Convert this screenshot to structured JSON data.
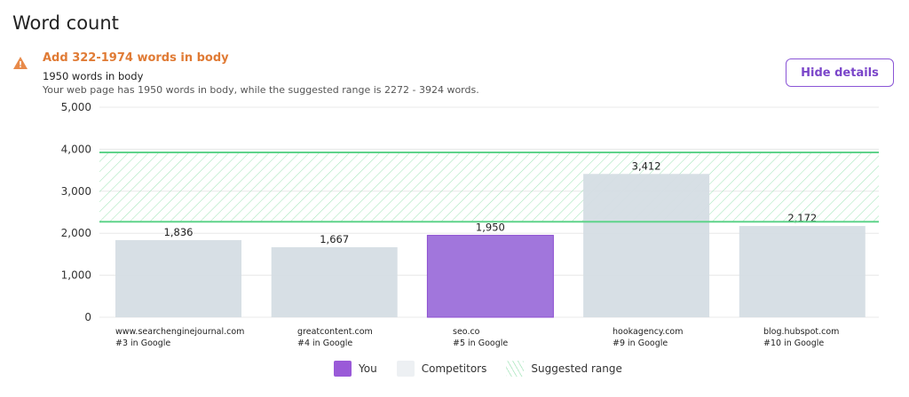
{
  "title": "Word count",
  "alert": {
    "icon": "warning-icon",
    "heading": "Add 322-1974 words in body",
    "subtitle": "1950 words in body",
    "description": "Your web page has 1950 words in body, while the suggested range is 2272 - 3924 words."
  },
  "hide_details_label": "Hide details",
  "colors": {
    "you": "#a176dc",
    "competitor": "#d5dde4",
    "range": "#5fd38a",
    "accent": "#e07b35"
  },
  "chart_data": {
    "type": "bar",
    "categories": [
      "www.searchenginejournal.com",
      "greatcontent.com",
      "seo.co",
      "hookagency.com",
      "blog.hubspot.com"
    ],
    "ranks": [
      "#3 in Google",
      "#4 in Google",
      "#5 in Google",
      "#9 in Google",
      "#10 in Google"
    ],
    "values": [
      1836,
      1667,
      1950,
      3412,
      2172
    ],
    "value_labels": [
      "1,836",
      "1,667",
      "1,950",
      "3,412",
      "2,172"
    ],
    "is_you": [
      false,
      false,
      true,
      false,
      false
    ],
    "ylim": [
      0,
      5000
    ],
    "yticks": [
      0,
      1000,
      2000,
      3000,
      4000,
      5000
    ],
    "ytick_labels": [
      "0",
      "1,000",
      "2,000",
      "3,000",
      "4,000",
      "5,000"
    ],
    "suggested_range": [
      2272,
      3924
    ],
    "legend": [
      "You",
      "Competitors",
      "Suggested range"
    ],
    "legend_position": "bottom"
  }
}
